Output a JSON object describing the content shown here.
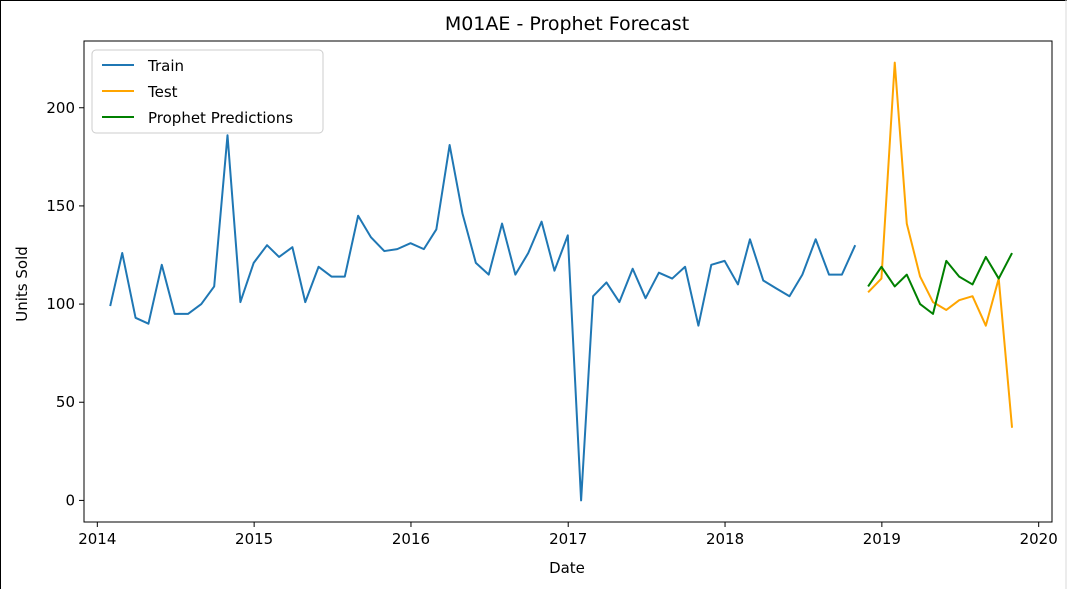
{
  "chart_data": {
    "type": "line",
    "title": "M01AE - Prophet Forecast",
    "xlabel": "Date",
    "ylabel": "Units Sold",
    "x_ticks": [
      "2014",
      "2015",
      "2016",
      "2017",
      "2018",
      "2019",
      "2020"
    ],
    "y_ticks": [
      "0",
      "50",
      "100",
      "150",
      "200"
    ],
    "xlim": [
      "2013-12-01",
      "2020-02-01"
    ],
    "ylim": [
      -11,
      234
    ],
    "grid": false,
    "legend_position": "top-left",
    "series": [
      {
        "name": "Train",
        "color": "#1f77b4",
        "points": [
          [
            "2014-01-31",
            99
          ],
          [
            "2014-02-28",
            126
          ],
          [
            "2014-03-31",
            93
          ],
          [
            "2014-04-30",
            90
          ],
          [
            "2014-05-31",
            120
          ],
          [
            "2014-06-30",
            95
          ],
          [
            "2014-07-31",
            95
          ],
          [
            "2014-08-31",
            100
          ],
          [
            "2014-09-30",
            109
          ],
          [
            "2014-10-31",
            186
          ],
          [
            "2014-11-30",
            101
          ],
          [
            "2014-12-31",
            121
          ],
          [
            "2015-01-31",
            130
          ],
          [
            "2015-02-28",
            124
          ],
          [
            "2015-03-31",
            129
          ],
          [
            "2015-04-30",
            101
          ],
          [
            "2015-05-31",
            119
          ],
          [
            "2015-06-30",
            114
          ],
          [
            "2015-07-31",
            114
          ],
          [
            "2015-08-31",
            145
          ],
          [
            "2015-09-30",
            134
          ],
          [
            "2015-10-31",
            127
          ],
          [
            "2015-11-30",
            128
          ],
          [
            "2015-12-31",
            131
          ],
          [
            "2016-01-31",
            128
          ],
          [
            "2016-02-29",
            138
          ],
          [
            "2016-03-31",
            181
          ],
          [
            "2016-04-30",
            146
          ],
          [
            "2016-05-31",
            121
          ],
          [
            "2016-06-30",
            115
          ],
          [
            "2016-07-31",
            141
          ],
          [
            "2016-08-31",
            115
          ],
          [
            "2016-09-30",
            126
          ],
          [
            "2016-10-31",
            142
          ],
          [
            "2016-11-30",
            117
          ],
          [
            "2016-12-31",
            135
          ],
          [
            "2017-01-31",
            0
          ],
          [
            "2017-02-28",
            104
          ],
          [
            "2017-03-31",
            111
          ],
          [
            "2017-04-30",
            101
          ],
          [
            "2017-05-31",
            118
          ],
          [
            "2017-06-30",
            103
          ],
          [
            "2017-07-31",
            116
          ],
          [
            "2017-08-31",
            113
          ],
          [
            "2017-09-30",
            119
          ],
          [
            "2017-10-31",
            89
          ],
          [
            "2017-11-30",
            120
          ],
          [
            "2017-12-31",
            122
          ],
          [
            "2018-01-31",
            110
          ],
          [
            "2018-02-28",
            133
          ],
          [
            "2018-03-31",
            112
          ],
          [
            "2018-04-30",
            108
          ],
          [
            "2018-05-31",
            104
          ],
          [
            "2018-06-30",
            115
          ],
          [
            "2018-07-31",
            133
          ],
          [
            "2018-08-31",
            115
          ],
          [
            "2018-09-30",
            115
          ],
          [
            "2018-10-31",
            130
          ]
        ]
      },
      {
        "name": "Test",
        "color": "#ffa500",
        "points": [
          [
            "2018-11-30",
            106
          ],
          [
            "2018-12-31",
            113
          ],
          [
            "2019-01-31",
            223
          ],
          [
            "2019-02-28",
            141
          ],
          [
            "2019-03-31",
            114
          ],
          [
            "2019-04-30",
            101
          ],
          [
            "2019-05-31",
            97
          ],
          [
            "2019-06-30",
            102
          ],
          [
            "2019-07-31",
            104
          ],
          [
            "2019-08-31",
            89
          ],
          [
            "2019-09-30",
            113
          ],
          [
            "2019-10-31",
            37
          ]
        ]
      },
      {
        "name": "Prophet Predictions",
        "color": "#008000",
        "points": [
          [
            "2018-11-30",
            109
          ],
          [
            "2018-12-31",
            119
          ],
          [
            "2019-01-31",
            109
          ],
          [
            "2019-02-28",
            115
          ],
          [
            "2019-03-31",
            100
          ],
          [
            "2019-04-30",
            95
          ],
          [
            "2019-05-31",
            122
          ],
          [
            "2019-06-30",
            114
          ],
          [
            "2019-07-31",
            110
          ],
          [
            "2019-08-31",
            124
          ],
          [
            "2019-09-30",
            113
          ],
          [
            "2019-10-31",
            126
          ]
        ]
      }
    ]
  }
}
